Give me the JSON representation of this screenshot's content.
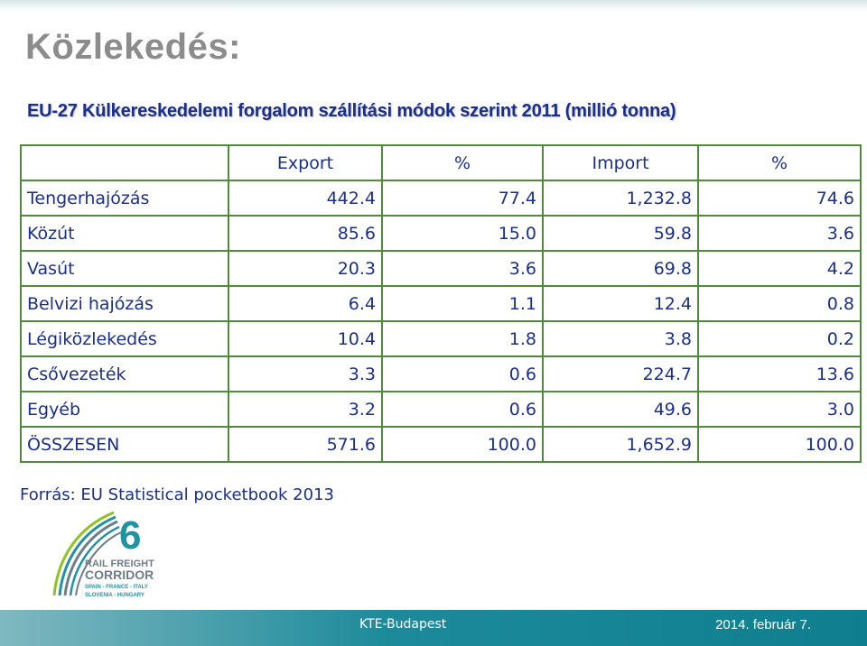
{
  "title": "Közlekedés:",
  "subtitle": "EU-27 Külkereskedelemi forgalom szállítási módok szerint 2011 (millió tonna)",
  "table": {
    "headers": [
      "",
      "Export",
      "%",
      "Import",
      "%"
    ],
    "rows": [
      [
        "Tengerhajózás",
        "442.4",
        "77.4",
        "1,232.8",
        "74.6"
      ],
      [
        "Közút",
        "85.6",
        "15.0",
        "59.8",
        "3.6"
      ],
      [
        "Vasút",
        "20.3",
        "3.6",
        "69.8",
        "4.2"
      ],
      [
        "Belvizi hajózás",
        "6.4",
        "1.1",
        "12.4",
        "0.8"
      ],
      [
        "Légiközlekedés",
        "10.4",
        "1.8",
        "3.8",
        "0.2"
      ],
      [
        "Csővezeték",
        "3.3",
        "0.6",
        "224.7",
        "13.6"
      ],
      [
        "Egyéb",
        "3.2",
        "0.6",
        "49.6",
        "3.0"
      ],
      [
        "ÖSSZESEN",
        "571.6",
        "100.0",
        "1,652.9",
        "100.0"
      ]
    ]
  },
  "source": "Forrás: EU Statistical pocketbook 2013",
  "logo": {
    "number": "6",
    "line1": "RAIL FREIGHT",
    "line2": "CORRIDOR",
    "line3": "SPAIN - FRANCE - ITALY",
    "line4": "SLOVENIA - HUNGARY",
    "colors": {
      "teal": "#1f93a0",
      "gray": "#6e7d87",
      "green": "#8fc31f"
    }
  },
  "footer": {
    "center": "KTE-Budapest",
    "date": "2014. február 7."
  }
}
